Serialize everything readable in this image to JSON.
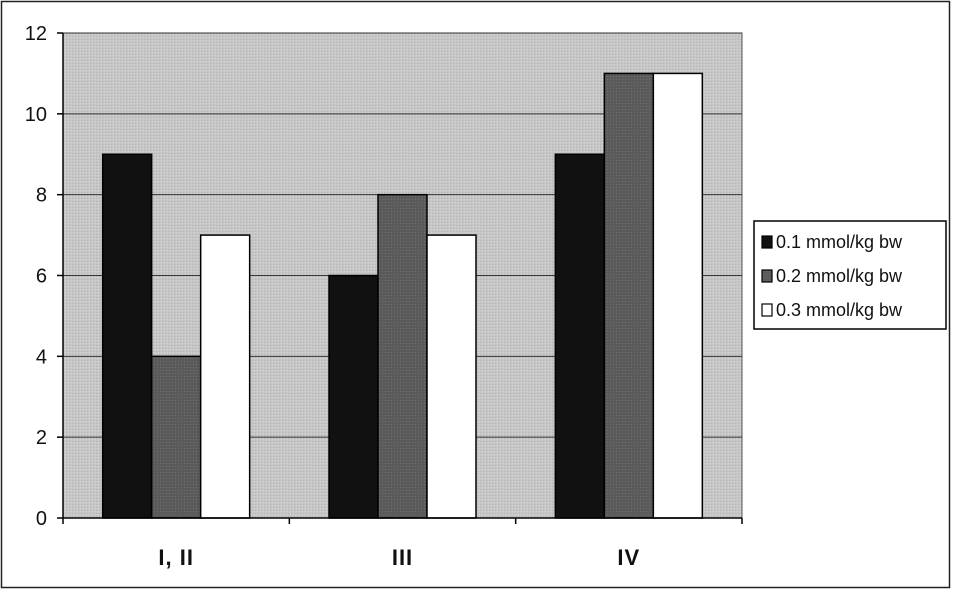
{
  "chart_data": {
    "type": "bar",
    "title": "",
    "xlabel": "",
    "ylabel": "",
    "categories": [
      "I, II",
      "III",
      "IV"
    ],
    "series": [
      {
        "name": "0.1 mmol/kg bw",
        "values": [
          9,
          6,
          9
        ],
        "color": "#111111"
      },
      {
        "name": "0.2 mmol/kg bw",
        "values": [
          4,
          8,
          11
        ],
        "color": "#5a5a5a"
      },
      {
        "name": "0.3 mmol/kg bw",
        "values": [
          7,
          7,
          11
        ],
        "color": "#ffffff"
      }
    ],
    "ylim": [
      0,
      12
    ],
    "yticks": [
      0,
      2,
      4,
      6,
      8,
      10,
      12
    ],
    "grid": true,
    "legend_position": "right",
    "plot_background": "#c4c4c4"
  }
}
